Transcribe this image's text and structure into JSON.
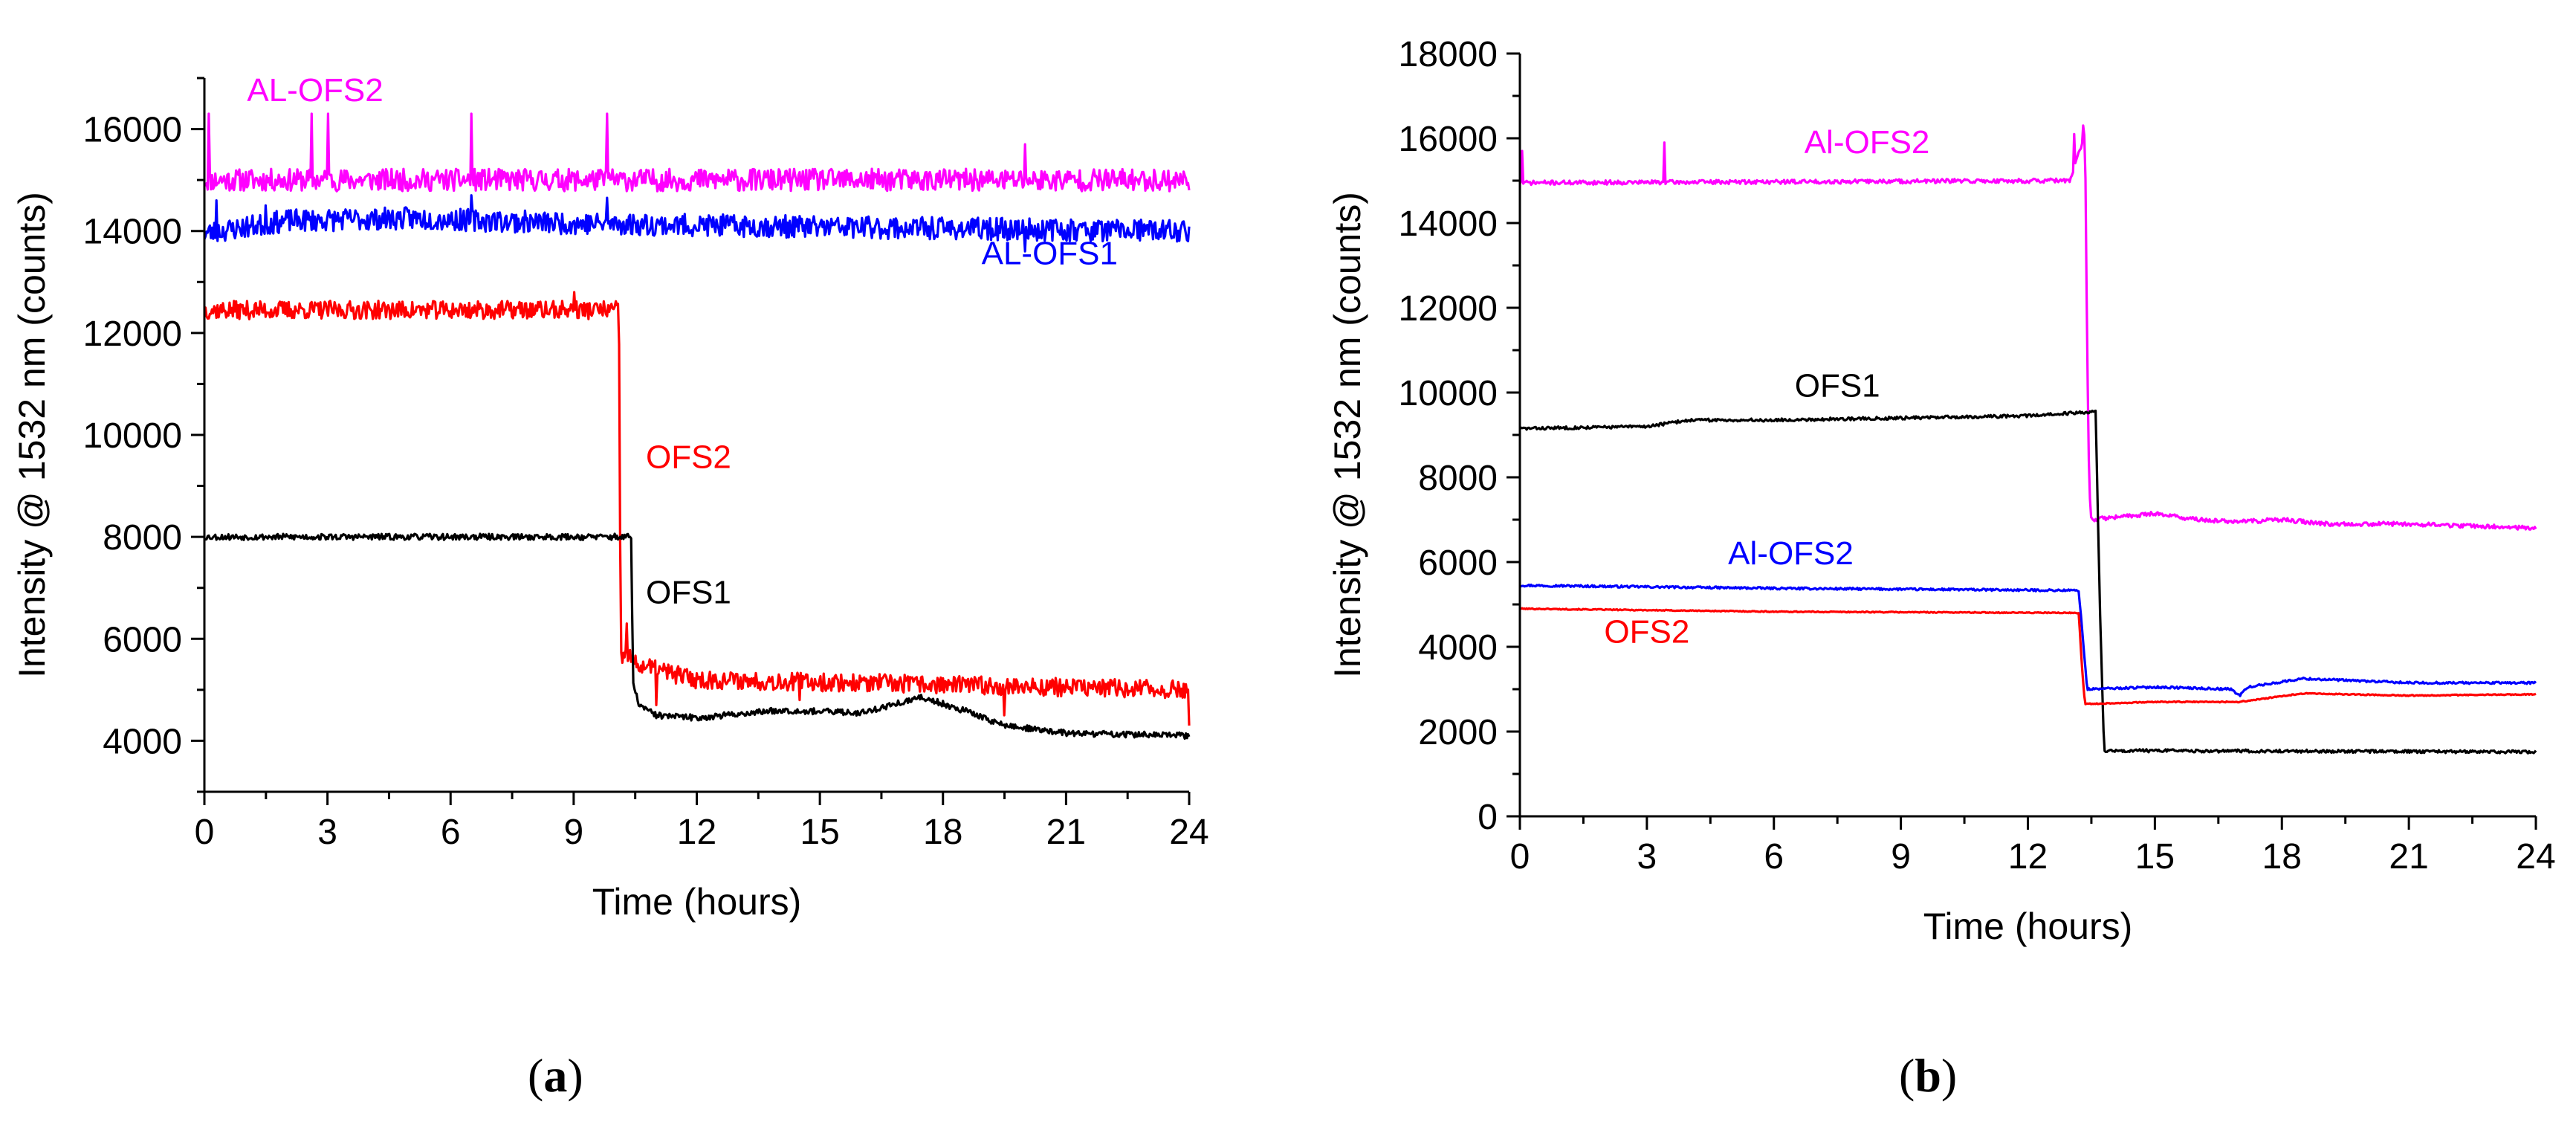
{
  "chart_data": [
    {
      "type": "line",
      "panel": "(a)",
      "caption_open": "(",
      "caption_letter": "a",
      "caption_close": ")",
      "xlabel": "Time (hours)",
      "ylabel": "Intensity @ 1532 nm (counts)",
      "xlim": [
        0,
        24
      ],
      "ylim": [
        3000,
        17000
      ],
      "xticks": [
        0,
        3,
        6,
        9,
        12,
        15,
        18,
        21,
        24
      ],
      "yticks": [
        4000,
        6000,
        8000,
        10000,
        12000,
        14000,
        16000
      ],
      "series": [
        {
          "name": "AL-OFS2",
          "color": "#ff00ff",
          "noise": 220,
          "seed": 11,
          "x": [
            0,
            24
          ],
          "y": [
            15000,
            15000
          ],
          "spikes": [
            [
              0.1,
              16300
            ],
            [
              2.6,
              16300
            ],
            [
              3.0,
              16300
            ],
            [
              6.5,
              16300
            ],
            [
              9.8,
              16300
            ],
            [
              20.0,
              15700
            ]
          ]
        },
        {
          "name": "AL-OFS1",
          "color": "#0000ff",
          "noise": 220,
          "seed": 23,
          "x": [
            0,
            2,
            5,
            9,
            13,
            18,
            24
          ],
          "y": [
            13950,
            14200,
            14250,
            14150,
            14100,
            14050,
            14000
          ],
          "spikes": [
            [
              0.3,
              14600
            ],
            [
              1.5,
              14500
            ],
            [
              6.5,
              14700
            ],
            [
              9.8,
              14650
            ],
            [
              20.0,
              13600
            ]
          ]
        },
        {
          "name": "OFS2",
          "color": "#ff0000",
          "noise": 180,
          "seed": 37,
          "x": [
            0,
            10.1,
            10.12,
            10.15,
            10.3,
            10.5,
            12,
            15,
            18,
            24
          ],
          "y": [
            12450,
            12450,
            10000,
            5600,
            5700,
            5500,
            5200,
            5150,
            5100,
            5000
          ],
          "spikes": [
            [
              9.0,
              12800
            ],
            [
              10.3,
              6300
            ],
            [
              11.0,
              4700
            ],
            [
              14.5,
              4800
            ],
            [
              19.5,
              4500
            ],
            [
              24,
              4300
            ]
          ]
        },
        {
          "name": "OFS1",
          "color": "#000000",
          "noise": 60,
          "seed": 53,
          "x": [
            0,
            10.4,
            10.45,
            10.6,
            11,
            12,
            14,
            16,
            17.5,
            18.5,
            19.5,
            21,
            24
          ],
          "y": [
            8000,
            8000,
            5100,
            4700,
            4500,
            4450,
            4600,
            4550,
            4850,
            4600,
            4300,
            4150,
            4100
          ],
          "spikes": []
        }
      ],
      "labels": [
        {
          "text": "AL-OFS2",
          "color": "#ff00ff",
          "x": 2.7,
          "y": 16550
        },
        {
          "text": "AL-OFS1",
          "color": "#0000ff",
          "x": 20.6,
          "y": 13350
        },
        {
          "text": "OFS2",
          "color": "#ff0000",
          "x": 11.8,
          "y": 9350
        },
        {
          "text": "OFS1",
          "color": "#000000",
          "x": 11.8,
          "y": 6700
        }
      ]
    },
    {
      "type": "line",
      "panel": "(b)",
      "caption_open": "(",
      "caption_letter": "b",
      "caption_close": ")",
      "xlabel": "Time (hours)",
      "ylabel": "Intensity @ 1532 nm (counts)",
      "xlim": [
        0,
        24
      ],
      "ylim": [
        0,
        18000
      ],
      "xticks": [
        0,
        3,
        6,
        9,
        12,
        15,
        18,
        21,
        24
      ],
      "yticks": [
        0,
        2000,
        4000,
        6000,
        8000,
        10000,
        12000,
        14000,
        16000,
        18000
      ],
      "series": [
        {
          "name": "Al-OFS2",
          "color": "#ff00ff",
          "noise": 50,
          "seed": 71,
          "x": [
            0,
            13.0,
            13.35,
            13.4,
            13.45,
            13.5,
            14,
            15,
            16,
            17,
            18,
            19,
            21,
            24
          ],
          "y": [
            14950,
            15000,
            16100,
            11000,
            7800,
            7000,
            7050,
            7150,
            7000,
            6950,
            7000,
            6900,
            6900,
            6800
          ],
          "spikes": [
            [
              0.05,
              15700
            ],
            [
              3.4,
              15900
            ],
            [
              13.1,
              16100
            ],
            [
              13.3,
              16300
            ]
          ]
        },
        {
          "name": "OFS1",
          "color": "#000000",
          "noise": 35,
          "seed": 83,
          "x": [
            0,
            3,
            4,
            6,
            9,
            12,
            13.6,
            13.7,
            13.8,
            24
          ],
          "y": [
            9150,
            9200,
            9350,
            9350,
            9400,
            9450,
            9550,
            5000,
            1550,
            1520
          ],
          "spikes": []
        },
        {
          "name": "Al-OFS2",
          "color": "#0000ff",
          "noise": 25,
          "seed": 97,
          "x": [
            0,
            6,
            13.2,
            13.3,
            13.4,
            15,
            16.8,
            17.0,
            17.2,
            18.5,
            21,
            24
          ],
          "y": [
            5450,
            5380,
            5330,
            4200,
            3000,
            3050,
            3000,
            2850,
            3050,
            3250,
            3150,
            3150
          ],
          "spikes": []
        },
        {
          "name": "OFS2",
          "color": "#ff0000",
          "noise": 12,
          "seed": 101,
          "x": [
            0,
            6,
            13.2,
            13.28,
            13.35,
            15,
            17,
            18.5,
            21,
            24
          ],
          "y": [
            4900,
            4830,
            4800,
            3500,
            2650,
            2700,
            2700,
            2900,
            2850,
            2880
          ],
          "spikes": []
        }
      ],
      "labels": [
        {
          "text": "Al-OFS2",
          "color": "#ff00ff",
          "x": 8.2,
          "y": 15650
        },
        {
          "text": "OFS1",
          "color": "#000000",
          "x": 7.5,
          "y": 9900
        },
        {
          "text": "Al-OFS2",
          "color": "#0000ff",
          "x": 6.4,
          "y": 5950
        },
        {
          "text": "OFS2",
          "color": "#ff0000",
          "x": 3.0,
          "y": 4100
        }
      ]
    }
  ]
}
